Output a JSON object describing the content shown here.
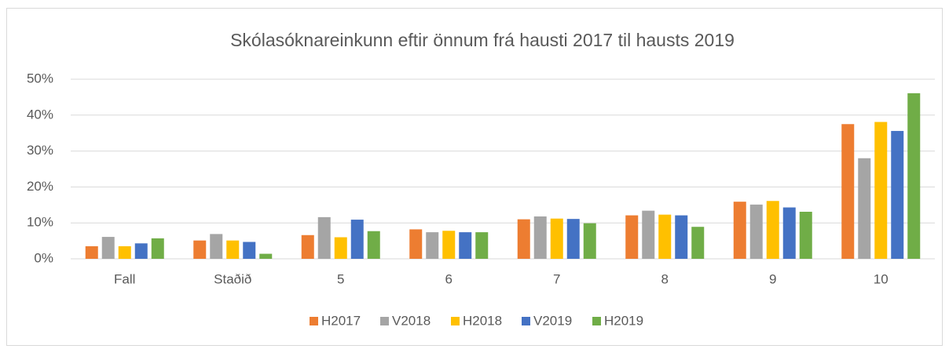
{
  "chart_data": {
    "type": "bar",
    "title": "Skólasóknareinkunn eftir önnum frá hausti 2017 til hausts 2019",
    "categories": [
      "Fall",
      "Staðið",
      "5",
      "6",
      "7",
      "8",
      "9",
      "10"
    ],
    "series": [
      {
        "name": "H2017",
        "color": "#ed7d31",
        "values": [
          3.5,
          5.1,
          6.6,
          8.2,
          11.0,
          12.1,
          15.9,
          37.5
        ]
      },
      {
        "name": "V2018",
        "color": "#a5a5a5",
        "values": [
          6.1,
          6.9,
          11.6,
          7.4,
          11.8,
          13.4,
          15.1,
          28.0
        ]
      },
      {
        "name": "H2018",
        "color": "#ffc000",
        "values": [
          3.5,
          5.1,
          6.0,
          7.8,
          11.2,
          12.3,
          16.1,
          38.1
        ]
      },
      {
        "name": "V2019",
        "color": "#4472c4",
        "values": [
          4.3,
          4.7,
          10.9,
          7.4,
          11.1,
          12.1,
          14.3,
          35.6
        ]
      },
      {
        "name": "H2019",
        "color": "#70ad47",
        "values": [
          5.7,
          1.4,
          7.7,
          7.4,
          9.9,
          8.9,
          13.1,
          46.1
        ]
      }
    ],
    "ylim": [
      0,
      50
    ],
    "yticks": [
      {
        "value": 0,
        "label": "0%"
      },
      {
        "value": 10,
        "label": "10%"
      },
      {
        "value": 20,
        "label": "20%"
      },
      {
        "value": 30,
        "label": "30%"
      },
      {
        "value": 40,
        "label": "40%"
      },
      {
        "value": 50,
        "label": "50%"
      }
    ],
    "grid": true,
    "legend": "bottom"
  }
}
